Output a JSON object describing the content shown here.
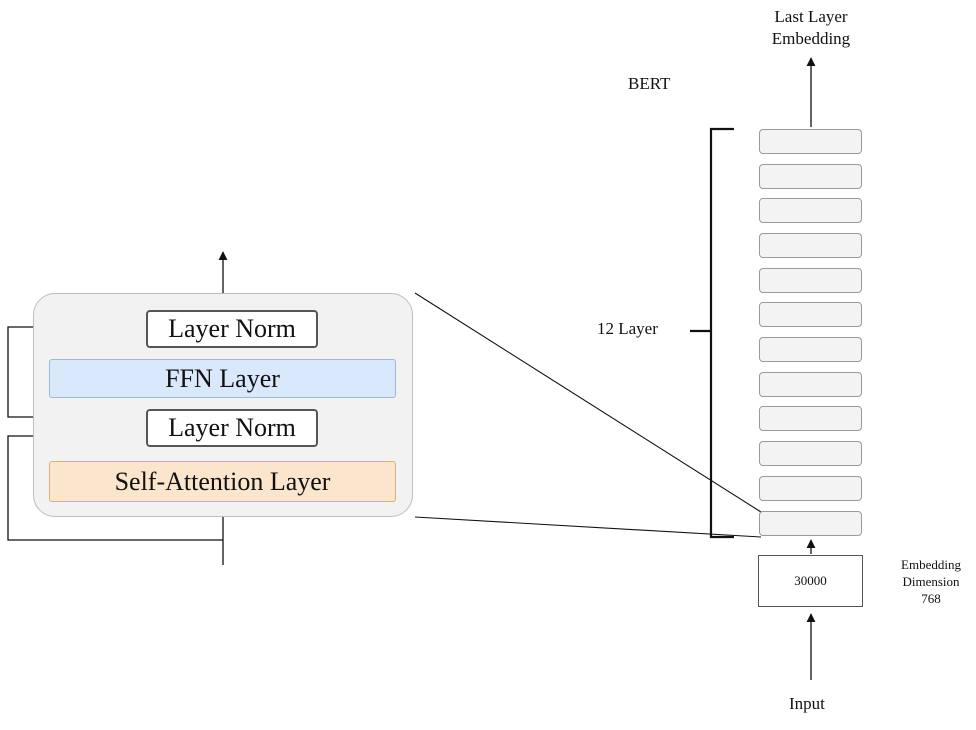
{
  "left_block": {
    "layer_norm_top": "Layer Norm",
    "ffn_layer": "FFN Layer",
    "layer_norm_bottom": "Layer Norm",
    "self_attention_layer": "Self-Attention Layer"
  },
  "right_stack": {
    "model_name": "BERT",
    "output_label_line1": "Last Layer",
    "output_label_line2": "Embedding",
    "layer_count_label": "12 Layer",
    "vocab_size": "30000",
    "embedding_label_line1": "Embedding",
    "embedding_label_line2": "Dimension",
    "embedding_label_line3": "768",
    "input_label": "Input"
  },
  "colors": {
    "ffn_fill": "#dae8fc",
    "attention_fill": "#fbe6cd",
    "container_fill": "#f2f2f2"
  }
}
